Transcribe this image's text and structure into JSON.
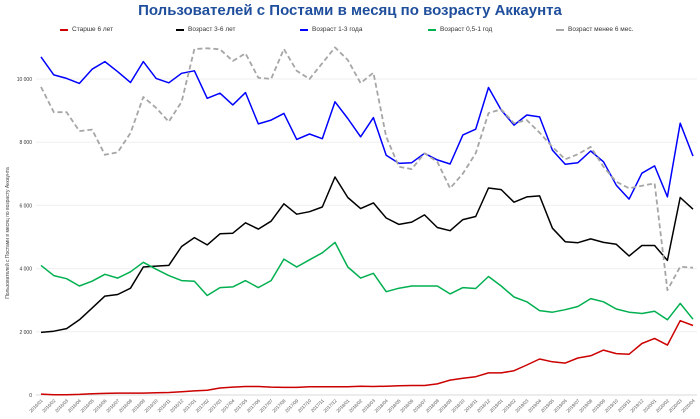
{
  "chart_data": {
    "type": "line",
    "title": "Пользователей с Постами в месяц по возрасту Аккаунта",
    "xlabel": "",
    "ylabel": "Пользователей с Постами в месяц по возрасту Аккаунта",
    "ylim": [
      0,
      11000
    ],
    "yticks": [
      0,
      2000,
      4000,
      6000,
      8000,
      10000
    ],
    "ytick_labels": [
      "0",
      "2 000",
      "4 000",
      "6 000",
      "8 000",
      "10 000"
    ],
    "grid": true,
    "legend_position": "top",
    "x": [
      "2016/01",
      "2016/02",
      "2016/03",
      "2016/04",
      "2016/05",
      "2016/06",
      "2016/07",
      "2016/08",
      "2016/09",
      "2016/10",
      "2016/11",
      "2016/12",
      "2017/01",
      "2017/02",
      "2017/03",
      "2017/04",
      "2017/05",
      "2017/06",
      "2017/07",
      "2017/08",
      "2017/09",
      "2017/10",
      "2017/11",
      "2017/12",
      "2018/01",
      "2018/02",
      "2018/03",
      "2018/04",
      "2018/05",
      "2018/06",
      "2018/07",
      "2018/08",
      "2018/09",
      "2018/10",
      "2018/11",
      "2018/12",
      "2019/01",
      "2019/02",
      "2019/03",
      "2019/04",
      "2019/05",
      "2019/06",
      "2019/07",
      "2019/08",
      "2019/09",
      "2019/10",
      "2019/11",
      "2019/12",
      "2020/01",
      "2020/02",
      "2020/03",
      "2020/04"
    ],
    "series": [
      {
        "name": "Старше 6 лет",
        "color": "#cc0000",
        "dashed": false,
        "values": [
          30,
          10,
          10,
          20,
          40,
          50,
          60,
          60,
          60,
          70,
          80,
          100,
          130,
          150,
          220,
          250,
          270,
          270,
          250,
          240,
          240,
          260,
          260,
          260,
          260,
          280,
          270,
          280,
          290,
          300,
          300,
          350,
          470,
          530,
          580,
          700,
          700,
          770,
          950,
          1140,
          1050,
          1010,
          1170,
          1240,
          1420,
          1310,
          1290,
          1630,
          1790,
          1580,
          2350,
          2200
        ]
      },
      {
        "name": "Возраст 3-6 лет",
        "color": "#000000",
        "dashed": false,
        "values": [
          1980,
          2020,
          2100,
          2380,
          2750,
          3130,
          3180,
          3380,
          4050,
          4080,
          4100,
          4700,
          4980,
          4750,
          5100,
          5120,
          5450,
          5250,
          5500,
          6050,
          5720,
          5800,
          5950,
          6900,
          6250,
          5900,
          6080,
          5600,
          5400,
          5470,
          5700,
          5300,
          5200,
          5550,
          5650,
          6550,
          6500,
          6100,
          6270,
          6300,
          5280,
          4850,
          4820,
          4940,
          4830,
          4770,
          4400,
          4730,
          4730,
          4260,
          6250,
          5880
        ]
      },
      {
        "name": "Возраст 1-3 года",
        "color": "#0000ff",
        "dashed": false,
        "values": [
          10700,
          10130,
          10020,
          9860,
          10310,
          10550,
          10230,
          9890,
          10550,
          10020,
          9880,
          10180,
          10260,
          9390,
          9550,
          9180,
          9570,
          8580,
          8700,
          8910,
          8090,
          8260,
          8110,
          9280,
          8750,
          8170,
          8780,
          7590,
          7330,
          7350,
          7650,
          7440,
          7310,
          8230,
          8410,
          9730,
          9020,
          8540,
          8860,
          8800,
          7750,
          7300,
          7350,
          7720,
          7380,
          6640,
          6200,
          7020,
          7250,
          6270,
          8600,
          7560
        ]
      },
      {
        "name": "Возраст 0,5-1 год",
        "color": "#00b050",
        "dashed": false,
        "values": [
          4100,
          3780,
          3680,
          3450,
          3600,
          3820,
          3700,
          3900,
          4200,
          3980,
          3780,
          3620,
          3600,
          3150,
          3400,
          3420,
          3620,
          3400,
          3620,
          4300,
          4050,
          4280,
          4500,
          4830,
          4050,
          3700,
          3850,
          3270,
          3380,
          3450,
          3450,
          3450,
          3200,
          3400,
          3370,
          3750,
          3450,
          3100,
          2950,
          2670,
          2620,
          2700,
          2800,
          3050,
          2950,
          2720,
          2620,
          2580,
          2650,
          2380,
          2900,
          2400
        ]
      },
      {
        "name": "Возраст менее 6 мес.",
        "color": "#a6a6a6",
        "dashed": true,
        "values": [
          9750,
          8950,
          8950,
          8350,
          8400,
          7600,
          7680,
          8290,
          9430,
          9090,
          8650,
          9280,
          10950,
          10970,
          10940,
          10570,
          10810,
          10040,
          10000,
          10950,
          10260,
          10000,
          10500,
          11000,
          10600,
          9870,
          10200,
          8170,
          7220,
          7150,
          7650,
          7380,
          6540,
          7010,
          7650,
          8920,
          9040,
          8600,
          8700,
          8300,
          7850,
          7460,
          7620,
          7850,
          7220,
          6750,
          6540,
          6620,
          6700,
          3320,
          4060,
          4030
        ]
      }
    ]
  }
}
